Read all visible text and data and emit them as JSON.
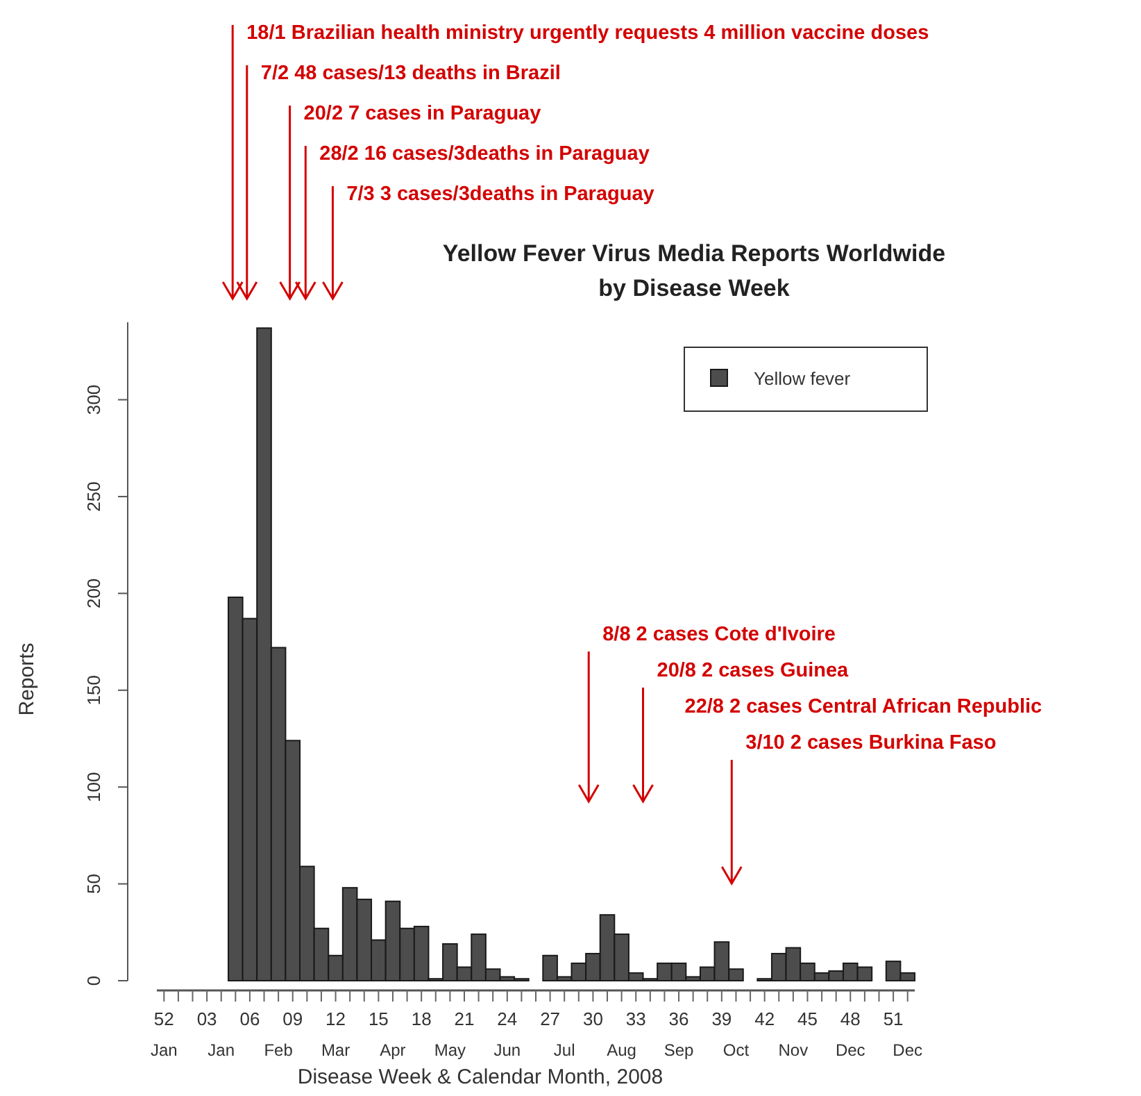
{
  "chart_data": {
    "type": "bar",
    "title": "Yellow Fever Virus Media Reports Worldwide",
    "subtitle": "by Disease Week",
    "xlabel": "Disease Week & Calendar Month, 2008",
    "ylabel": "Reports",
    "categories": [
      "52\nJan",
      null,
      null,
      "03",
      "\nJan",
      null,
      "06",
      null,
      "\nFeb",
      "09",
      null,
      null,
      "12\nMar",
      null,
      null,
      "15",
      "\nApr",
      null,
      "18",
      null,
      "\nMay",
      "21",
      null,
      null,
      "24\nJun",
      null,
      null,
      "27",
      "\nJul",
      null,
      "30",
      null,
      "\nAug",
      "33",
      null,
      null,
      "36\nSep",
      null,
      null,
      "39",
      "\nOct",
      null,
      "42",
      null,
      "\nNov",
      "45",
      null,
      null,
      "48\nDec",
      null,
      null,
      "51",
      "\nDec"
    ],
    "series": [
      {
        "name": "Yellow fever",
        "color": "#4d4d4d",
        "values": [
          0,
          0,
          0,
          0,
          0,
          198,
          187,
          337,
          172,
          124,
          59,
          27,
          13,
          48,
          42,
          21,
          41,
          27,
          28,
          1,
          19,
          7,
          24,
          6,
          2,
          1,
          0,
          13,
          2,
          9,
          14,
          34,
          24,
          4,
          1,
          9,
          9,
          2,
          7,
          20,
          6,
          0,
          1,
          14,
          17,
          9,
          4,
          5,
          9,
          7,
          0,
          10,
          4
        ]
      }
    ],
    "ylim": [
      0,
      340
    ],
    "yticks": [
      0,
      50,
      100,
      150,
      200,
      250,
      300
    ],
    "legend": "top right",
    "annotations": [
      "18/1 Brazilian health ministry urgently requests 4 million vaccine doses",
      "7/2 48 cases/13 deaths in Brazil",
      "20/2 7 cases in Paraguay",
      "28/2 16 cases/3deaths in Paraguay",
      "7/3 3 cases/3deaths in Paraguay",
      "8/8 2 cases Cote d'Ivoire",
      "20/8 2 cases Guinea",
      "22/8 2 cases Central African Republic",
      "3/10 2 cases Burkina Faso"
    ]
  }
}
